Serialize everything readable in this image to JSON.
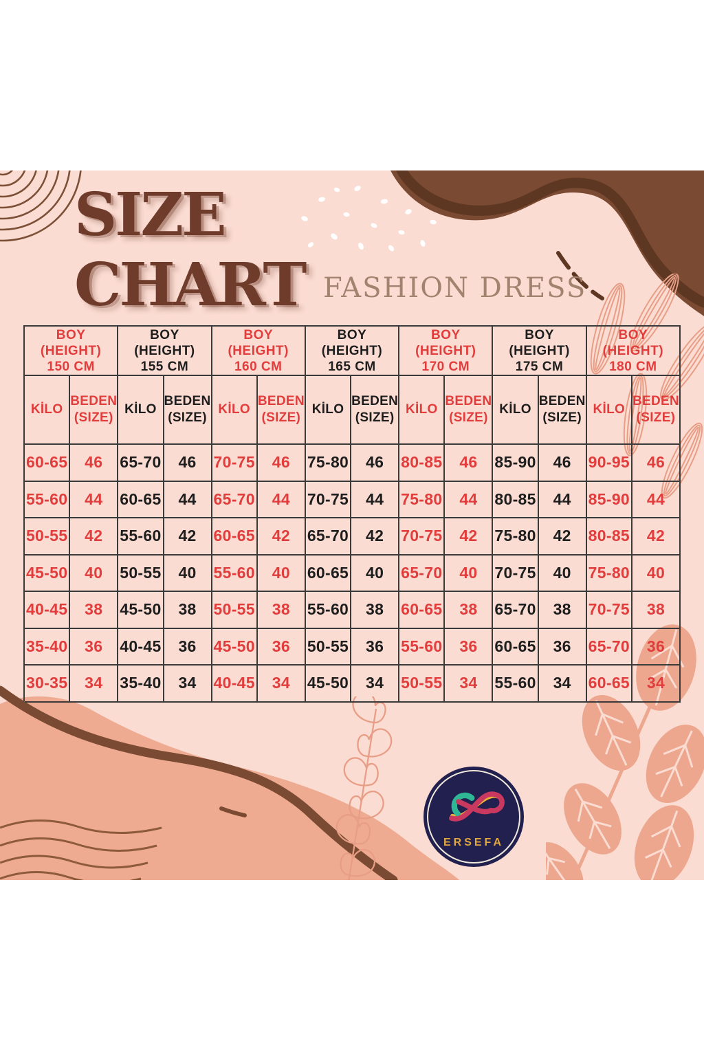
{
  "header": {
    "title_line1": "SIZE",
    "title_line2": "CHART",
    "subtitle": "FASHION DRESS"
  },
  "logo": {
    "brand": "ERSEFA"
  },
  "colors": {
    "background_pink": "#fbdcd2",
    "accent_red": "#e23d3d",
    "text_black": "#1e1e1e",
    "title_brown": "#6f3c2b",
    "subtitle_taupe": "#a1836f",
    "blob_dark_brown": "#7b4a33",
    "blob_salmon": "#eeab91",
    "leaf_salmon": "#eda78e",
    "logo_navy": "#22204e",
    "logo_gold": "#e2a83e"
  },
  "chart_data": {
    "type": "table",
    "title": "SIZE CHART",
    "subtitle": "FASHION DRESS",
    "row_header_lines": [
      "BOY",
      "(HEIGHT)"
    ],
    "sub_headers": {
      "kilo": "KİLO",
      "beden_line1": "BEDEN",
      "beden_line2": "(SIZE)"
    },
    "groups": [
      {
        "height_cm": "150 CM",
        "accent": "red",
        "rows": [
          [
            "60-65",
            "46"
          ],
          [
            "55-60",
            "44"
          ],
          [
            "50-55",
            "42"
          ],
          [
            "45-50",
            "40"
          ],
          [
            "40-45",
            "38"
          ],
          [
            "35-40",
            "36"
          ],
          [
            "30-35",
            "34"
          ]
        ]
      },
      {
        "height_cm": "155 CM",
        "accent": "black",
        "rows": [
          [
            "65-70",
            "46"
          ],
          [
            "60-65",
            "44"
          ],
          [
            "55-60",
            "42"
          ],
          [
            "50-55",
            "40"
          ],
          [
            "45-50",
            "38"
          ],
          [
            "40-45",
            "36"
          ],
          [
            "35-40",
            "34"
          ]
        ]
      },
      {
        "height_cm": "160 CM",
        "accent": "red",
        "rows": [
          [
            "70-75",
            "46"
          ],
          [
            "65-70",
            "44"
          ],
          [
            "60-65",
            "42"
          ],
          [
            "55-60",
            "40"
          ],
          [
            "50-55",
            "38"
          ],
          [
            "45-50",
            "36"
          ],
          [
            "40-45",
            "34"
          ]
        ]
      },
      {
        "height_cm": "165 CM",
        "accent": "black",
        "rows": [
          [
            "75-80",
            "46"
          ],
          [
            "70-75",
            "44"
          ],
          [
            "65-70",
            "42"
          ],
          [
            "60-65",
            "40"
          ],
          [
            "55-60",
            "38"
          ],
          [
            "50-55",
            "36"
          ],
          [
            "45-50",
            "34"
          ]
        ]
      },
      {
        "height_cm": "170 CM",
        "accent": "red",
        "rows": [
          [
            "80-85",
            "46"
          ],
          [
            "75-80",
            "44"
          ],
          [
            "70-75",
            "42"
          ],
          [
            "65-70",
            "40"
          ],
          [
            "60-65",
            "38"
          ],
          [
            "55-60",
            "36"
          ],
          [
            "50-55",
            "34"
          ]
        ]
      },
      {
        "height_cm": "175 CM",
        "accent": "black",
        "rows": [
          [
            "85-90",
            "46"
          ],
          [
            "80-85",
            "44"
          ],
          [
            "75-80",
            "42"
          ],
          [
            "70-75",
            "40"
          ],
          [
            "65-70",
            "38"
          ],
          [
            "60-65",
            "36"
          ],
          [
            "55-60",
            "34"
          ]
        ]
      },
      {
        "height_cm": "180 CM",
        "accent": "red",
        "rows": [
          [
            "90-95",
            "46"
          ],
          [
            "85-90",
            "44"
          ],
          [
            "80-85",
            "42"
          ],
          [
            "75-80",
            "40"
          ],
          [
            "70-75",
            "38"
          ],
          [
            "65-70",
            "36"
          ],
          [
            "60-65",
            "34"
          ]
        ]
      }
    ]
  }
}
